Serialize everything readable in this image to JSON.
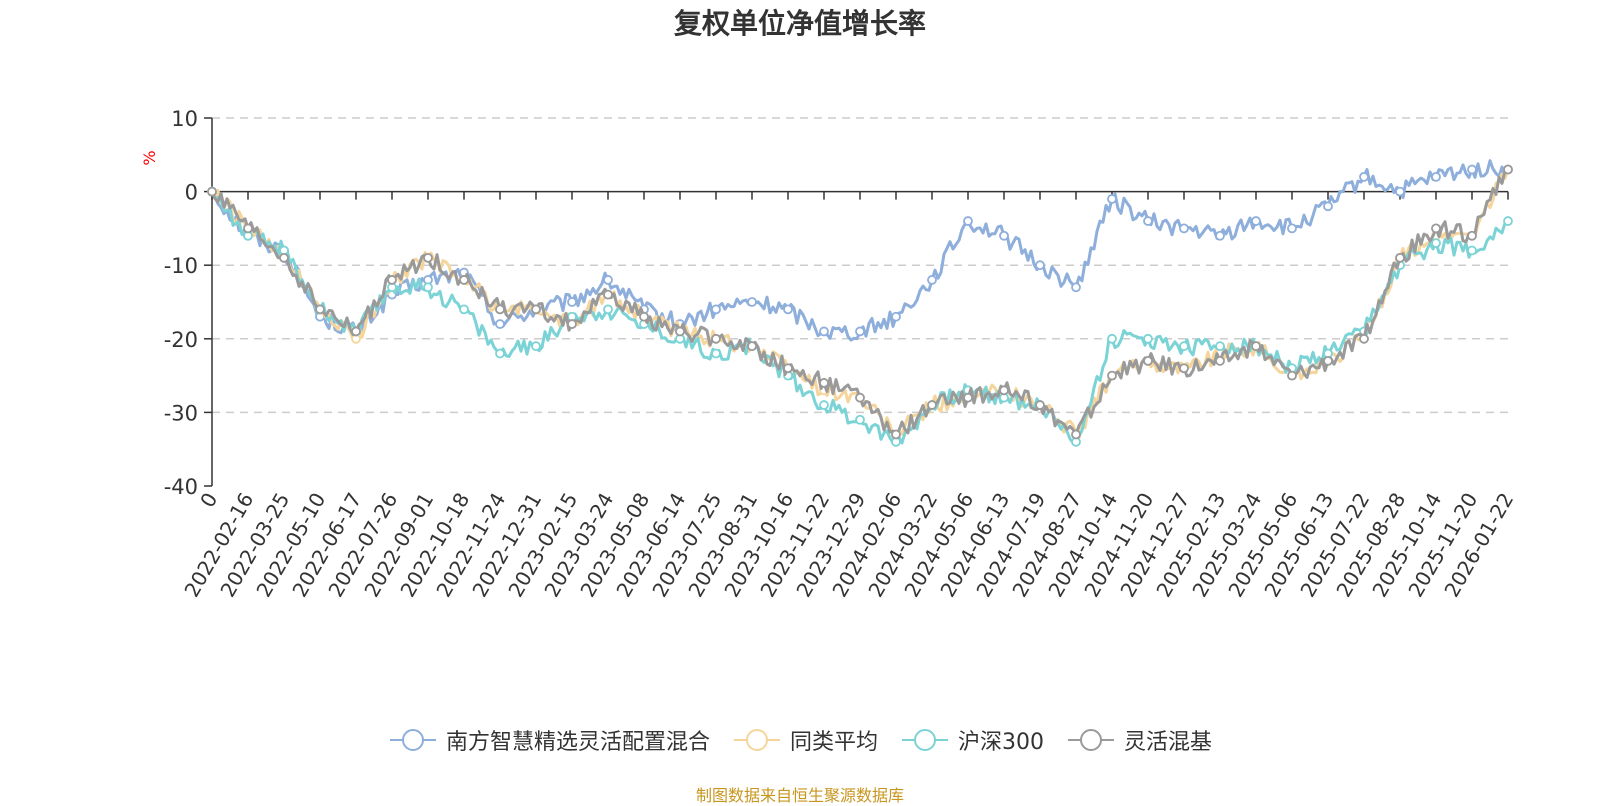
{
  "title": "复权单位净值增长率",
  "source_text": "制图数据来自恒生聚源数据库",
  "colors": {
    "title": "#333333",
    "axis": "#333333",
    "grid": "#cccccc",
    "ylabel": "#ff0000",
    "source": "#c8961e"
  },
  "chart_data": {
    "type": "line",
    "title": "复权单位净值增长率",
    "ylabel": "%",
    "xlabel": "",
    "ylim": [
      -40,
      10
    ],
    "yticks": [
      10,
      0,
      -10,
      -20,
      -30,
      -40
    ],
    "grid": "horizontal dashed",
    "legend_position": "bottom-center",
    "categories": [
      "0",
      "2022-02-16",
      "2022-03-25",
      "2022-05-10",
      "2022-06-17",
      "2022-07-26",
      "2022-09-01",
      "2022-10-18",
      "2022-11-24",
      "2022-12-31",
      "2023-02-15",
      "2023-03-24",
      "2023-05-08",
      "2023-06-14",
      "2023-07-25",
      "2023-08-31",
      "2023-10-16",
      "2023-11-22",
      "2023-12-29",
      "2024-02-06",
      "2024-03-22",
      "2024-05-06",
      "2024-06-13",
      "2024-07-19",
      "2024-08-27",
      "2024-10-14",
      "2024-11-20",
      "2024-12-27",
      "2025-02-13",
      "2025-03-24",
      "2025-05-06",
      "2025-06-13",
      "2025-07-22",
      "2025-08-28",
      "2025-10-14",
      "2025-11-20",
      "2026-01-22"
    ],
    "series": [
      {
        "name": "南方智慧精选灵活配置混合",
        "color": "#8eaedb",
        "values": [
          0,
          -6,
          -8,
          -17,
          -19,
          -14,
          -12,
          -11,
          -18,
          -16,
          -15,
          -12,
          -16,
          -18,
          -16,
          -15,
          -16,
          -19,
          -19,
          -17,
          -12,
          -4,
          -6,
          -10,
          -13,
          -1,
          -4,
          -5,
          -6,
          -4,
          -5,
          -2,
          2,
          0,
          2,
          3,
          3
        ]
      },
      {
        "name": "同类平均",
        "color": "#f5d59b",
        "values": [
          0,
          -5,
          -9,
          -16,
          -20,
          -12,
          -9,
          -12,
          -16,
          -16,
          -18,
          -14,
          -17,
          -19,
          -20,
          -21,
          -24,
          -27,
          -28,
          -33,
          -29,
          -28,
          -27,
          -29,
          -33,
          -25,
          -23,
          -24,
          -22,
          -21,
          -25,
          -23,
          -20,
          -9,
          -6,
          -6,
          3
        ]
      },
      {
        "name": "沪深300",
        "color": "#7bd3d6",
        "values": [
          0,
          -6,
          -8,
          -16,
          -19,
          -13,
          -13,
          -16,
          -22,
          -21,
          -17,
          -16,
          -18,
          -20,
          -22,
          -21,
          -25,
          -29,
          -31,
          -34,
          -29,
          -27,
          -28,
          -29,
          -34,
          -20,
          -20,
          -21,
          -21,
          -21,
          -24,
          -22,
          -19,
          -10,
          -7,
          -8,
          -4
        ]
      },
      {
        "name": "灵活混基",
        "color": "#9a9a9a",
        "values": [
          0,
          -5,
          -9,
          -16,
          -19,
          -12,
          -9,
          -12,
          -16,
          -16,
          -18,
          -14,
          -17,
          -19,
          -20,
          -21,
          -24,
          -26,
          -28,
          -33,
          -29,
          -28,
          -27,
          -29,
          -33,
          -25,
          -23,
          -24,
          -23,
          -21,
          -25,
          -23,
          -20,
          -9,
          -5,
          -6,
          3
        ]
      }
    ]
  }
}
